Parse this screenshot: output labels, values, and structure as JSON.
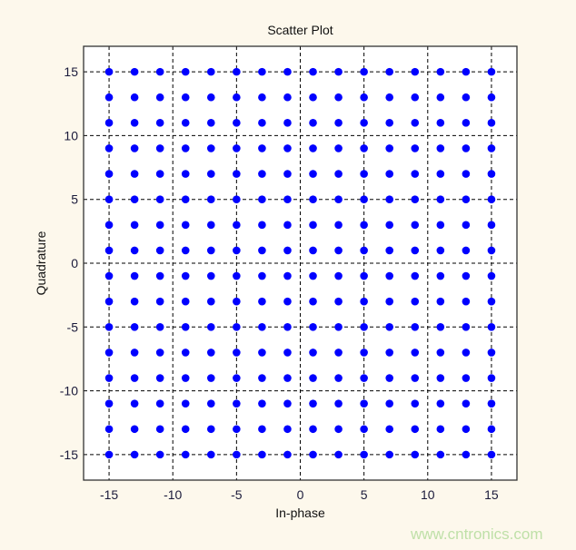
{
  "chart_data": {
    "type": "scatter",
    "title": "Scatter Plot",
    "xlabel": "In-phase",
    "ylabel": "Quadrature",
    "xlim": [
      -17,
      17
    ],
    "ylim": [
      -17,
      17
    ],
    "xticks": [
      -15,
      -10,
      -5,
      0,
      5,
      10,
      15
    ],
    "yticks": [
      -15,
      -10,
      -5,
      0,
      5,
      10,
      15
    ],
    "grid": true,
    "marker_color": "#0000ff",
    "points_description_levels": [
      -15,
      -13,
      -11,
      -9,
      -7,
      -5,
      -3,
      -1,
      1,
      3,
      5,
      7,
      9,
      11,
      13,
      15
    ]
  },
  "watermark": "www.cntronics.com"
}
